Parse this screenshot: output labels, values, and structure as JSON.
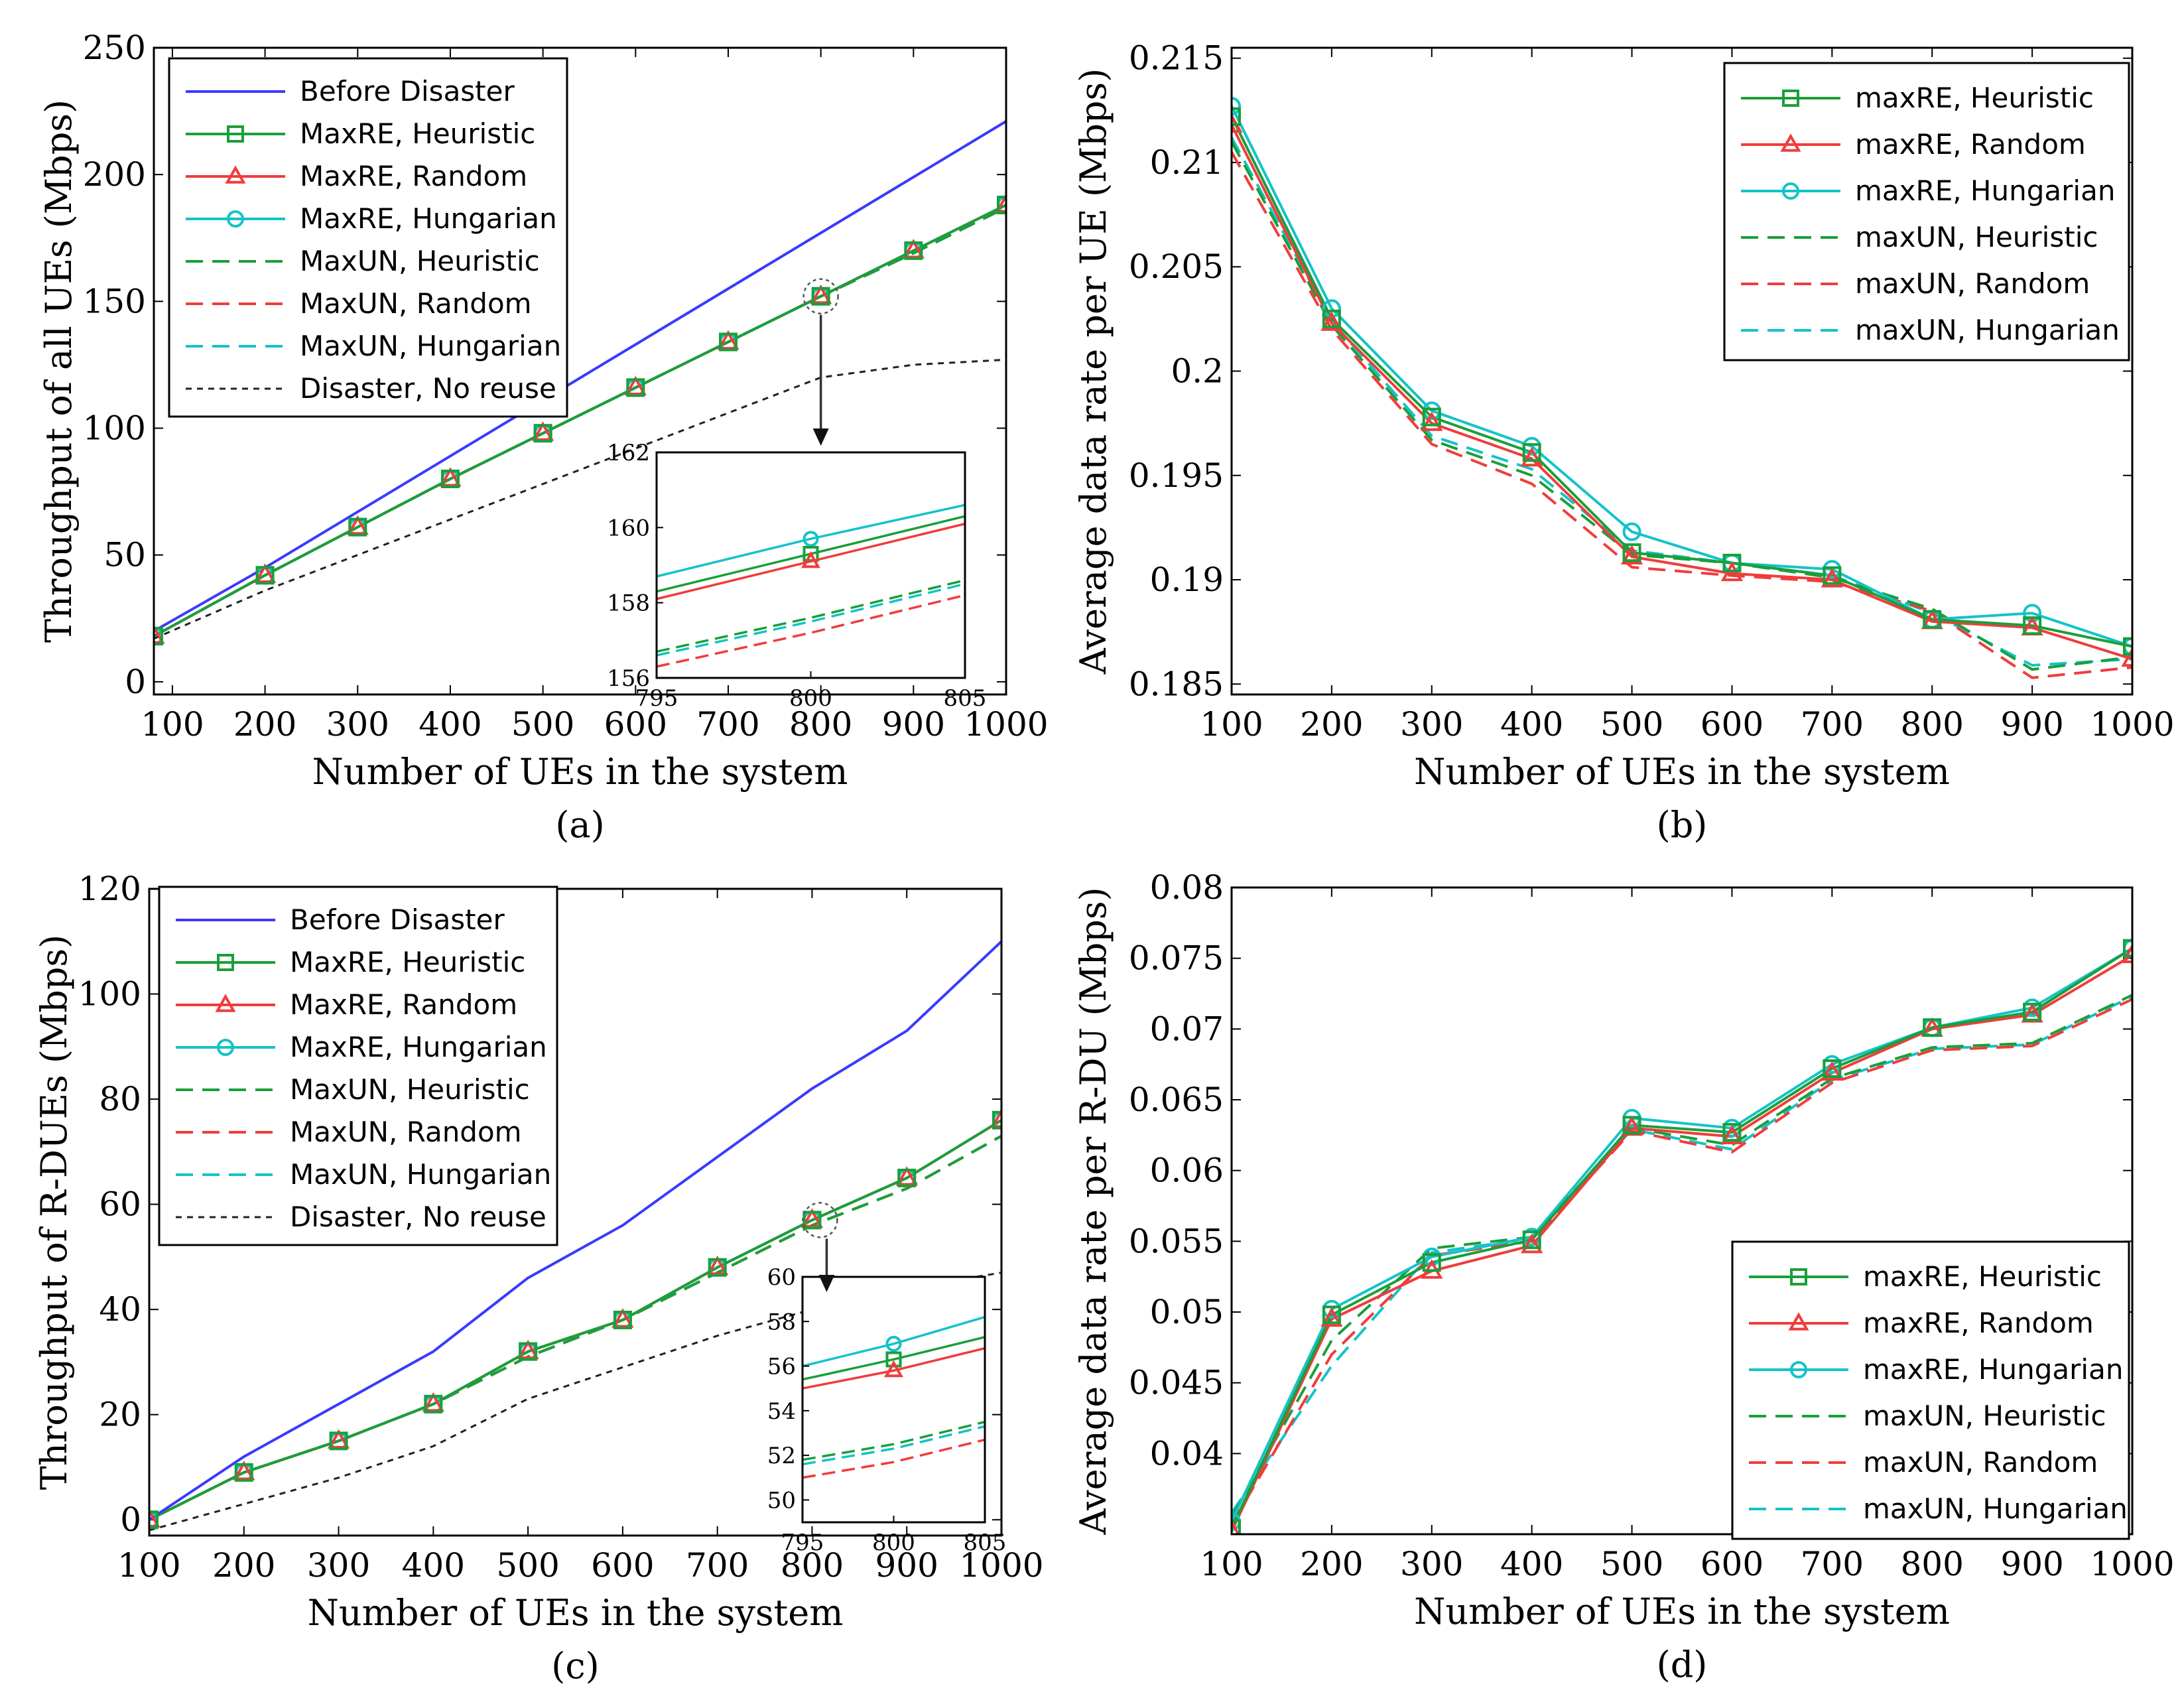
{
  "figure": {
    "panels": [
      "(a)",
      "(b)",
      "(c)",
      "(d)"
    ]
  },
  "colors": {
    "blue": "#3a3aff",
    "green": "#1a9f3a",
    "red": "#f03c3c",
    "cyan": "#14c3c8",
    "black": "#222222"
  },
  "chart_data": [
    {
      "type": "line",
      "panel": "(a)",
      "xlabel": "Number of UEs in the system",
      "ylabel": "Throughput of all UEs (Mbps)",
      "xlim": [
        80,
        1000
      ],
      "ylim": [
        -5,
        250
      ],
      "xticks": [
        100,
        200,
        300,
        400,
        500,
        600,
        700,
        800,
        900,
        1000
      ],
      "yticks": [
        0,
        50,
        100,
        150,
        200,
        250
      ],
      "x": [
        80,
        200,
        300,
        400,
        500,
        600,
        700,
        800,
        900,
        1000
      ],
      "legend_position": "top-left",
      "series": [
        {
          "name": "Before Disaster",
          "color": "blue",
          "style": "solid",
          "marker": "none",
          "values": [
            20,
            45,
            67,
            89,
            111,
            133,
            155,
            177,
            199,
            221
          ]
        },
        {
          "name": "MaxRE, Heuristic",
          "color": "green",
          "style": "solid",
          "marker": "square",
          "values": [
            18,
            42,
            61,
            80,
            98,
            116,
            134,
            152,
            170,
            188
          ]
        },
        {
          "name": "MaxRE, Random",
          "color": "red",
          "style": "solid",
          "marker": "triangle",
          "values": [
            18,
            42,
            61,
            80,
            98,
            116,
            134,
            152,
            170,
            188
          ]
        },
        {
          "name": "MaxRE, Hungarian",
          "color": "cyan",
          "style": "solid",
          "marker": "circle",
          "values": [
            18,
            42,
            61,
            80,
            98,
            116,
            134,
            152,
            170,
            188
          ]
        },
        {
          "name": "MaxUN, Heuristic",
          "color": "green",
          "style": "dashed",
          "marker": "none",
          "values": [
            18,
            42,
            61,
            80,
            98,
            116,
            134,
            152,
            169,
            187
          ]
        },
        {
          "name": "MaxUN, Random",
          "color": "red",
          "style": "dashed",
          "marker": "none",
          "values": [
            18,
            42,
            61,
            80,
            98,
            116,
            134,
            152,
            169,
            187
          ]
        },
        {
          "name": "MaxUN, Hungarian",
          "color": "cyan",
          "style": "dashed",
          "marker": "none",
          "values": [
            18,
            42,
            61,
            80,
            98,
            116,
            134,
            152,
            169,
            187
          ]
        },
        {
          "name": "Disaster, No reuse",
          "color": "black",
          "style": "dotted",
          "marker": "none",
          "values": [
            17,
            36,
            50,
            64,
            78,
            92,
            106,
            120,
            125,
            127
          ]
        }
      ],
      "inset": {
        "xlim": [
          795,
          805
        ],
        "ylim": [
          156,
          162
        ],
        "xticks": [
          795,
          800,
          805
        ],
        "yticks": [
          156,
          158,
          160,
          162
        ],
        "x": [
          795,
          800,
          805
        ],
        "series": [
          {
            "color": "cyan",
            "style": "solid",
            "marker": "circle",
            "values": [
              158.7,
              159.7,
              160.6
            ]
          },
          {
            "color": "green",
            "style": "solid",
            "marker": "square",
            "values": [
              158.3,
              159.3,
              160.3
            ]
          },
          {
            "color": "red",
            "style": "solid",
            "marker": "triangle",
            "values": [
              158.1,
              159.1,
              160.1
            ]
          },
          {
            "color": "green",
            "style": "dashed",
            "marker": "none",
            "values": [
              156.7,
              157.6,
              158.6
            ]
          },
          {
            "color": "cyan",
            "style": "dashed",
            "marker": "none",
            "values": [
              156.6,
              157.5,
              158.5
            ]
          },
          {
            "color": "red",
            "style": "dashed",
            "marker": "none",
            "values": [
              156.3,
              157.2,
              158.2
            ]
          }
        ]
      }
    },
    {
      "type": "line",
      "panel": "(b)",
      "xlabel": "Number of UEs in the system",
      "ylabel": "Average data rate per UE (Mbps)",
      "xlim": [
        100,
        1000
      ],
      "ylim": [
        0.1845,
        0.2155
      ],
      "xticks": [
        100,
        200,
        300,
        400,
        500,
        600,
        700,
        800,
        900,
        1000
      ],
      "yticks": [
        0.185,
        0.19,
        0.195,
        0.2,
        0.205,
        0.21,
        0.215
      ],
      "ytick_labels": [
        "0.185",
        "0.19",
        "0.195",
        "0.2",
        "0.205",
        "0.21",
        "0.215"
      ],
      "x": [
        100,
        200,
        300,
        400,
        500,
        600,
        700,
        800,
        900,
        1000
      ],
      "legend_position": "top-right",
      "series": [
        {
          "name": "maxRE, Heuristic",
          "color": "green",
          "style": "solid",
          "marker": "square",
          "values": [
            0.2122,
            0.2025,
            0.1978,
            0.1961,
            0.1913,
            0.1908,
            0.1902,
            0.1881,
            0.1878,
            0.1868
          ]
        },
        {
          "name": "maxRE, Random",
          "color": "red",
          "style": "solid",
          "marker": "triangle",
          "values": [
            0.2118,
            0.2023,
            0.1975,
            0.1958,
            0.1911,
            0.1903,
            0.19,
            0.188,
            0.1877,
            0.1862
          ]
        },
        {
          "name": "maxRE, Hungarian",
          "color": "cyan",
          "style": "solid",
          "marker": "circle",
          "values": [
            0.2127,
            0.203,
            0.1981,
            0.1964,
            0.1923,
            0.1908,
            0.1905,
            0.1881,
            0.1884,
            0.1868
          ]
        },
        {
          "name": "maxUN, Heuristic",
          "color": "green",
          "style": "dashed",
          "marker": "none",
          "values": [
            0.211,
            0.2022,
            0.1967,
            0.195,
            0.1912,
            0.1908,
            0.1901,
            0.1886,
            0.1857,
            0.1863
          ]
        },
        {
          "name": "maxUN, Random",
          "color": "red",
          "style": "dashed",
          "marker": "none",
          "values": [
            0.2105,
            0.202,
            0.1965,
            0.1946,
            0.1906,
            0.1902,
            0.1899,
            0.1885,
            0.1853,
            0.1858
          ]
        },
        {
          "name": "maxUN, Hungarian",
          "color": "cyan",
          "style": "dashed",
          "marker": "none",
          "values": [
            0.2112,
            0.2024,
            0.1969,
            0.1953,
            0.1914,
            0.1908,
            0.1902,
            0.1884,
            0.1859,
            0.1862
          ]
        }
      ]
    },
    {
      "type": "line",
      "panel": "(c)",
      "xlabel": "Number of UEs in the system",
      "ylabel": "Throughput of R-DUEs (Mbps)",
      "xlim": [
        100,
        1000
      ],
      "ylim": [
        -3,
        120
      ],
      "xticks": [
        100,
        200,
        300,
        400,
        500,
        600,
        700,
        800,
        900,
        1000
      ],
      "yticks": [
        0,
        20,
        40,
        60,
        80,
        100,
        120
      ],
      "x": [
        100,
        200,
        300,
        400,
        500,
        600,
        700,
        800,
        900,
        1000
      ],
      "legend_position": "top-left",
      "series": [
        {
          "name": "Before Disaster",
          "color": "blue",
          "style": "solid",
          "marker": "none",
          "values": [
            0,
            12,
            22,
            32,
            46,
            56,
            69,
            82,
            93,
            110
          ]
        },
        {
          "name": "MaxRE, Heuristic",
          "color": "green",
          "style": "solid",
          "marker": "square",
          "values": [
            0,
            9,
            15,
            22,
            32,
            38,
            48,
            57,
            65,
            76
          ]
        },
        {
          "name": "MaxRE, Random",
          "color": "red",
          "style": "solid",
          "marker": "triangle",
          "values": [
            0,
            9,
            15,
            22,
            32,
            38,
            48,
            57,
            65,
            76
          ]
        },
        {
          "name": "MaxRE, Hungarian",
          "color": "cyan",
          "style": "solid",
          "marker": "circle",
          "values": [
            0,
            9,
            15,
            22,
            32,
            38,
            48,
            57,
            65,
            76
          ]
        },
        {
          "name": "MaxUN, Heuristic",
          "color": "green",
          "style": "dashed",
          "marker": "none",
          "values": [
            0,
            9,
            15,
            22,
            31,
            38,
            47,
            56,
            63,
            73
          ]
        },
        {
          "name": "MaxUN, Random",
          "color": "red",
          "style": "dashed",
          "marker": "none",
          "values": [
            0,
            9,
            15,
            22,
            31,
            38,
            47,
            56,
            63,
            73
          ]
        },
        {
          "name": "MaxUN, Hungarian",
          "color": "cyan",
          "style": "dashed",
          "marker": "none",
          "values": [
            0,
            9,
            15,
            22,
            31,
            38,
            47,
            56,
            63,
            73
          ]
        },
        {
          "name": "Disaster, No reuse",
          "color": "black",
          "style": "dotted",
          "marker": "none",
          "values": [
            -2,
            3,
            8,
            14,
            23,
            29,
            35,
            40,
            44,
            47
          ]
        }
      ],
      "inset": {
        "xlim": [
          795,
          805
        ],
        "ylim": [
          49,
          60
        ],
        "xticks": [
          795,
          800,
          805
        ],
        "yticks": [
          50,
          52,
          54,
          56,
          58,
          60
        ],
        "x": [
          795,
          800,
          805
        ],
        "series": [
          {
            "color": "cyan",
            "style": "solid",
            "marker": "circle",
            "values": [
              56.0,
              57.0,
              58.2
            ]
          },
          {
            "color": "green",
            "style": "solid",
            "marker": "square",
            "values": [
              55.4,
              56.3,
              57.3
            ]
          },
          {
            "color": "red",
            "style": "solid",
            "marker": "triangle",
            "values": [
              55.0,
              55.8,
              56.8
            ]
          },
          {
            "color": "green",
            "style": "dashed",
            "marker": "none",
            "values": [
              51.8,
              52.5,
              53.5
            ]
          },
          {
            "color": "cyan",
            "style": "dashed",
            "marker": "none",
            "values": [
              51.6,
              52.3,
              53.3
            ]
          },
          {
            "color": "red",
            "style": "dashed",
            "marker": "none",
            "values": [
              51.0,
              51.7,
              52.7
            ]
          }
        ]
      }
    },
    {
      "type": "line",
      "panel": "(d)",
      "xlabel": "Number of UEs in the system",
      "ylabel": "Average data rate per R-DU (Mbps)",
      "xlim": [
        100,
        1000
      ],
      "ylim": [
        0.0343,
        0.08
      ],
      "xticks": [
        100,
        200,
        300,
        400,
        500,
        600,
        700,
        800,
        900,
        1000
      ],
      "yticks": [
        0.04,
        0.045,
        0.05,
        0.055,
        0.06,
        0.065,
        0.07,
        0.075,
        0.08
      ],
      "ytick_labels": [
        "0.04",
        "0.045",
        "0.05",
        "0.055",
        "0.06",
        "0.065",
        "0.07",
        "0.075",
        "0.08"
      ],
      "x": [
        100,
        200,
        300,
        400,
        500,
        600,
        700,
        800,
        900,
        1000
      ],
      "legend_position": "bottom-right",
      "series": [
        {
          "name": "maxRE, Heuristic",
          "color": "green",
          "style": "solid",
          "marker": "square",
          "values": [
            0.0347,
            0.0498,
            0.0535,
            0.0551,
            0.0632,
            0.0627,
            0.0672,
            0.0701,
            0.0712,
            0.0757
          ]
        },
        {
          "name": "maxRE, Random",
          "color": "red",
          "style": "solid",
          "marker": "triangle",
          "values": [
            0.0345,
            0.0495,
            0.0529,
            0.0547,
            0.063,
            0.0624,
            0.0669,
            0.07,
            0.071,
            0.0752
          ]
        },
        {
          "name": "maxRE, Hungarian",
          "color": "cyan",
          "style": "solid",
          "marker": "circle",
          "values": [
            0.0352,
            0.0502,
            0.0539,
            0.0553,
            0.0637,
            0.063,
            0.0675,
            0.0701,
            0.0715,
            0.0757
          ]
        },
        {
          "name": "maxUN, Heuristic",
          "color": "green",
          "style": "dashed",
          "marker": "none",
          "values": [
            0.0355,
            0.048,
            0.0545,
            0.0553,
            0.063,
            0.0618,
            0.0665,
            0.0687,
            0.069,
            0.0724
          ]
        },
        {
          "name": "maxUN, Random",
          "color": "red",
          "style": "dashed",
          "marker": "none",
          "values": [
            0.035,
            0.047,
            0.054,
            0.055,
            0.0628,
            0.0613,
            0.0662,
            0.0685,
            0.0688,
            0.0721
          ]
        },
        {
          "name": "maxUN, Hungarian",
          "color": "cyan",
          "style": "dashed",
          "marker": "none",
          "values": [
            0.0358,
            0.0462,
            0.0542,
            0.0552,
            0.0629,
            0.0615,
            0.0664,
            0.0686,
            0.0689,
            0.0723
          ]
        }
      ]
    }
  ]
}
